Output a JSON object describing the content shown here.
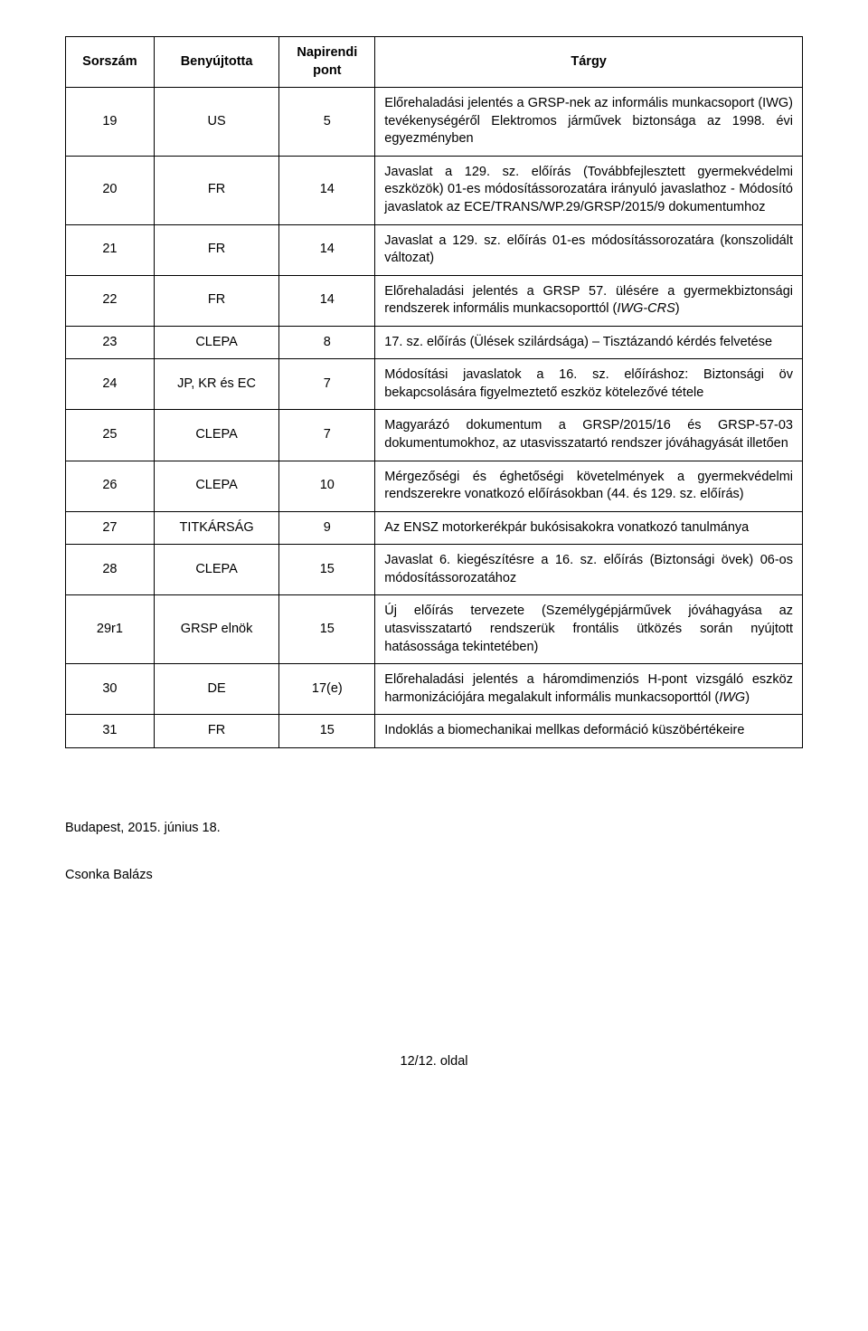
{
  "headers": {
    "sorszam": "Sorszám",
    "benyujtotta": "Benyújtotta",
    "napirendi": "Napirendi pont",
    "targy": "Tárgy"
  },
  "rows": [
    {
      "sorszam": "19",
      "benyujtotta": "US",
      "napirendi": "5",
      "targy_html": "Előrehaladási jelentés a GRSP-nek az informális munkacsoport (IWG) tevékenységéről Elektromos járművek biztonsága az 1998. évi egyezményben"
    },
    {
      "sorszam": "20",
      "benyujtotta": "FR",
      "napirendi": "14",
      "targy_html": "Javaslat a 129. sz. előírás (Továbbfejlesztett gyermekvédelmi eszközök) 01-es módosítássorozatára irányuló javaslathoz - Módosító javaslatok az ECE/TRANS/WP.29/GRSP/2015/9 dokumentumhoz"
    },
    {
      "sorszam": "21",
      "benyujtotta": "FR",
      "napirendi": "14",
      "targy_html": "Javaslat a 129. sz. előírás 01-es módosítássorozatára (konszolidált változat)"
    },
    {
      "sorszam": "22",
      "benyujtotta": "FR",
      "napirendi": "14",
      "targy_html": "Előrehaladási jelentés a GRSP 57. ülésére a gyermekbiztonsági rendszerek informális munkacsoporttól (<span class=\"italic\">IWG-CRS</span>)"
    },
    {
      "sorszam": "23",
      "benyujtotta": "CLEPA",
      "napirendi": "8",
      "targy_html": "17. sz. előírás (Ülések szilárdsága) – Tisztázandó kérdés felvetése"
    },
    {
      "sorszam": "24",
      "benyujtotta": "JP, KR és EC",
      "napirendi": "7",
      "targy_html": "Módosítási javaslatok a 16. sz. előíráshoz: Biztonsági öv bekapcsolására figyelmeztető eszköz kötelezővé tétele"
    },
    {
      "sorszam": "25",
      "benyujtotta": "CLEPA",
      "napirendi": "7",
      "targy_html": "Magyarázó dokumentum a GRSP/2015/16 és GRSP-57-03 dokumentumokhoz, az utasvisszatartó rendszer jóváhagyását illetően"
    },
    {
      "sorszam": "26",
      "benyujtotta": "CLEPA",
      "napirendi": "10",
      "targy_html": "Mérgezőségi és éghetőségi követelmények a gyermekvédelmi rendszerekre vonatkozó előírásokban (44. és 129. sz. előírás)"
    },
    {
      "sorszam": "27",
      "benyujtotta": "TITKÁRSÁG",
      "napirendi": "9",
      "targy_html": "Az ENSZ motorkerékpár bukósisakokra vonatkozó tanulmánya"
    },
    {
      "sorszam": "28",
      "benyujtotta": "CLEPA",
      "napirendi": "15",
      "targy_html": "Javaslat 6. kiegészítésre a 16. sz. előírás (Biztonsági övek) 06-os módosítássorozatához"
    },
    {
      "sorszam": "29r1",
      "benyujtotta": "GRSP elnök",
      "napirendi": "15",
      "targy_html": "Új előírás tervezete (Személygépjárművek jóváhagyása az utasvisszatartó rendszerük frontális ütközés során nyújtott hatásossága tekintetében)"
    },
    {
      "sorszam": "30",
      "benyujtotta": "DE",
      "napirendi": "17(e)",
      "targy_html": "Előrehaladási jelentés a háromdimenziós H-pont vizsgáló eszköz harmonizációjára megalakult informális munkacsoporttól (<span class=\"italic\">IWG</span>)"
    },
    {
      "sorszam": "31",
      "benyujtotta": "FR",
      "napirendi": "15",
      "targy_html": "Indoklás a biomechanikai mellkas deformáció küszöbértékeire"
    }
  ],
  "below": {
    "location_date": "Budapest, 2015. június 18.",
    "author": "Csonka Balázs"
  },
  "footer": {
    "page_text": "12/12. oldal"
  },
  "styling": {
    "background_color": "#ffffff",
    "text_color": "#000000",
    "border_color": "#000000",
    "font_family": "Arial",
    "font_size_pt": 11,
    "columns_width_pct": [
      12,
      17,
      13,
      58
    ]
  }
}
